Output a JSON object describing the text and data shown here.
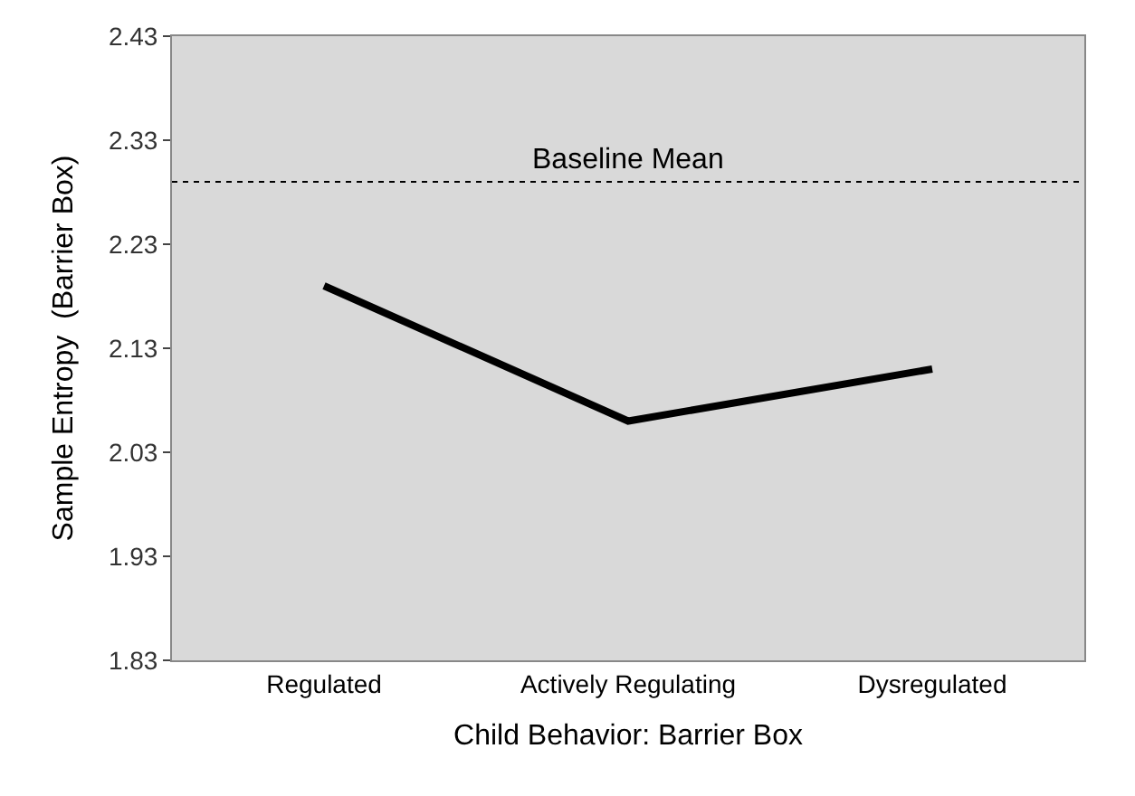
{
  "chart_data": {
    "type": "line",
    "xlabel": "Child Behavior: Barrier Box",
    "ylabel": "Sample Entropy  (Barrier Box)",
    "categories": [
      "Regulated",
      "Actively Regulating",
      "Dysregulated"
    ],
    "series": [
      {
        "color": "#000000",
        "values": [
          2.19,
          2.06,
          2.11
        ]
      }
    ],
    "ylim": [
      1.83,
      2.43
    ],
    "yticks": [
      1.83,
      1.93,
      2.03,
      2.13,
      2.23,
      2.33,
      2.43
    ],
    "ref_lines": [
      {
        "axis": "y",
        "value": 2.29,
        "label": "Baseline Mean",
        "color": "#000000",
        "line_style": "dotted"
      }
    ],
    "grid": false,
    "legend": false,
    "marker": "none",
    "line_style": "solid"
  }
}
